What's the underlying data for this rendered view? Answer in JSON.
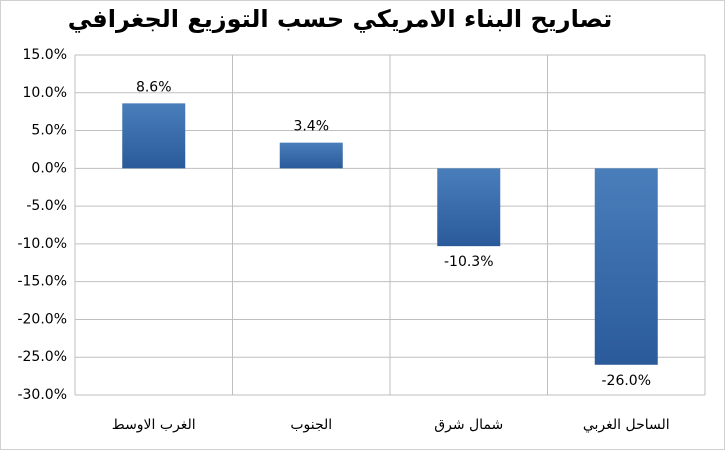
{
  "chart_data": {
    "type": "bar",
    "title": "تصاريح البناء الامريكي حسب التوزيع الجغرافي",
    "categories": [
      "الغرب الاوسط",
      "الجنوب",
      "شمال شرق",
      "الساحل الغربي"
    ],
    "values": [
      8.6,
      3.4,
      -10.3,
      -26.0
    ],
    "value_labels": [
      "8.6%",
      "3.4%",
      "-10.3%",
      "-26.0%"
    ],
    "color": "#4a7ebb",
    "ylim": [
      -30,
      15
    ],
    "yticks": [
      {
        "value": 15,
        "label": "15.0%"
      },
      {
        "value": 10,
        "label": "10.0%"
      },
      {
        "value": 5,
        "label": "5.0%"
      },
      {
        "value": 0,
        "label": "0.0%"
      },
      {
        "value": -5,
        "label": "-5.0%"
      },
      {
        "value": -10,
        "label": "-10.0%"
      },
      {
        "value": -15,
        "label": "-15.0%"
      },
      {
        "value": -20,
        "label": "-20.0%"
      },
      {
        "value": -25,
        "label": "-25.0%"
      },
      {
        "value": -30,
        "label": "-30.0%"
      }
    ],
    "grid": true
  }
}
